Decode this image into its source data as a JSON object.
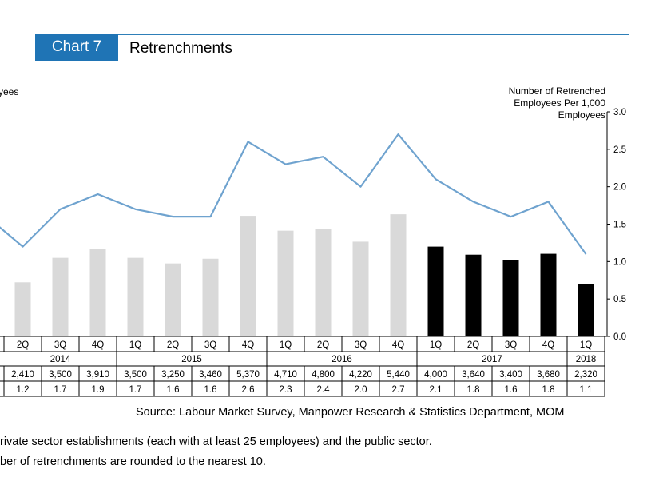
{
  "header": {
    "badge": "Chart 7",
    "title": "Retrenchments"
  },
  "colors": {
    "accent": "#1f74b5",
    "bar_past": "#d9d9d9",
    "bar_2017": "#000000",
    "line": "#6fa3cf"
  },
  "left_axis_label": "yees",
  "right_axis_label": "Number of Retrenched Employees Per 1,000 Employees",
  "chart_data": {
    "type": "bar",
    "categories": [
      "2Q 2014",
      "3Q 2014",
      "4Q 2014",
      "1Q 2015",
      "2Q 2015",
      "3Q 2015",
      "4Q 2015",
      "1Q 2016",
      "2Q 2016",
      "3Q 2016",
      "4Q 2016",
      "1Q 2017",
      "2Q 2017",
      "3Q 2017",
      "4Q 2017",
      "1Q 2018"
    ],
    "quarter_labels": [
      "2Q",
      "3Q",
      "4Q",
      "1Q",
      "2Q",
      "3Q",
      "4Q",
      "1Q",
      "2Q",
      "3Q",
      "4Q",
      "1Q",
      "2Q",
      "3Q",
      "4Q",
      "1Q"
    ],
    "year_groups": [
      {
        "label": "2014",
        "start": 0,
        "end": 2
      },
      {
        "label": "2015",
        "start": 3,
        "end": 6
      },
      {
        "label": "2016",
        "start": 7,
        "end": 10
      },
      {
        "label": "2017",
        "start": 11,
        "end": 14
      },
      {
        "label": "2018",
        "start": 15,
        "end": 15
      }
    ],
    "series": [
      {
        "type": "bar",
        "values": [
          2410,
          3500,
          3910,
          3500,
          3250,
          3460,
          5370,
          4710,
          4800,
          4220,
          5440,
          4000,
          3640,
          3400,
          3680,
          2320
        ]
      },
      {
        "type": "line",
        "values": [
          1.2,
          1.7,
          1.9,
          1.7,
          1.6,
          1.6,
          2.6,
          2.3,
          2.4,
          2.0,
          2.7,
          2.1,
          1.8,
          1.6,
          1.8,
          1.1
        ]
      }
    ],
    "table_rows": [
      [
        "2,410",
        "3,500",
        "3,910",
        "3,500",
        "3,250",
        "3,460",
        "5,370",
        "4,710",
        "4,800",
        "4,220",
        "5,440",
        "4,000",
        "3,640",
        "3,400",
        "3,680",
        "2,320"
      ],
      [
        "1.2",
        "1.7",
        "1.9",
        "1.7",
        "1.6",
        "1.6",
        "2.6",
        "2.3",
        "2.4",
        "2.0",
        "2.7",
        "2.1",
        "1.8",
        "1.6",
        "1.8",
        "1.1"
      ]
    ],
    "line_value_before_first": 1.5,
    "y_right_ticks": [
      "0.0",
      "0.5",
      "1.0",
      "1.5",
      "2.0",
      "2.5",
      "3.0"
    ],
    "y_right_lim": [
      0,
      3.0
    ],
    "bar_ylim": [
      0,
      10000
    ],
    "grid": false
  },
  "source": "Source: Labour Market Survey, Manpower Research & Statistics Department, MOM",
  "notes": [
    "rivate sector establishments (each with at least 25 employees) and the public sector.",
    "ber of retrenchments are rounded to the nearest 10."
  ]
}
